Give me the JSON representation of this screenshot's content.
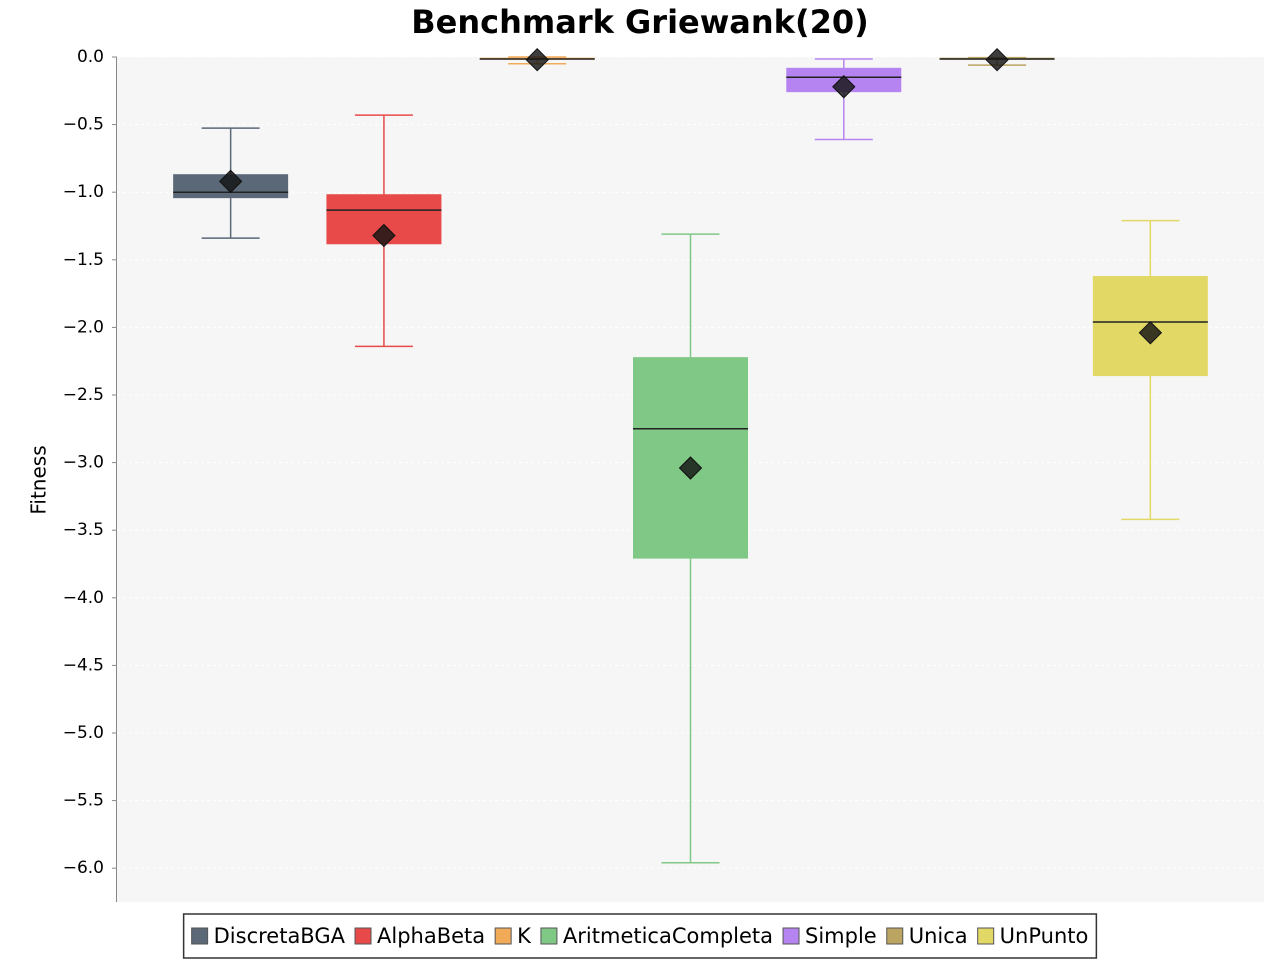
{
  "chart_data": {
    "type": "boxplot",
    "title": "Benchmark Griewank(20)",
    "y_label": "Fitness",
    "ylim": [
      -6.25,
      0
    ],
    "yticks": [
      {
        "value": 0,
        "label": "0.0"
      },
      {
        "value": -0.5,
        "label": "−0.5"
      },
      {
        "value": -1,
        "label": "−1.0"
      },
      {
        "value": -1.5,
        "label": "−1.5"
      },
      {
        "value": -2,
        "label": "−2.0"
      },
      {
        "value": -2.5,
        "label": "−2.5"
      },
      {
        "value": -3,
        "label": "−3.0"
      },
      {
        "value": -3.5,
        "label": "−3.5"
      },
      {
        "value": -4,
        "label": "−4.0"
      },
      {
        "value": -4.5,
        "label": "−4.5"
      },
      {
        "value": -5,
        "label": "−5.0"
      },
      {
        "value": -5.5,
        "label": "−5.5"
      },
      {
        "value": -6,
        "label": "−6.0"
      }
    ],
    "grid": true,
    "legend": "bottom",
    "series": [
      {
        "name": "DiscretaBGA",
        "color": "#5a6878",
        "whisker_low": -1.34,
        "q1": -1.044,
        "median": -1.0,
        "q3": -0.867,
        "whisker_high": -0.526,
        "mean": -0.92
      },
      {
        "name": "AlphaBeta",
        "color": "#e84a4a",
        "whisker_low": -2.14,
        "q1": -1.385,
        "median": -1.133,
        "q3": -1.015,
        "whisker_high": -0.43,
        "mean": -1.32
      },
      {
        "name": "K",
        "color": "#f0aa58",
        "whisker_low": -0.05,
        "q1": -0.02,
        "median": -0.015,
        "q3": -0.005,
        "whisker_high": 0,
        "mean": -0.02
      },
      {
        "name": "AritmeticaCompleta",
        "color": "#80c886",
        "whisker_low": -5.96,
        "q1": -3.71,
        "median": -2.75,
        "q3": -2.22,
        "whisker_high": -1.31,
        "mean": -3.04
      },
      {
        "name": "Simple",
        "color": "#b684f0",
        "whisker_low": -0.61,
        "q1": -0.26,
        "median": -0.15,
        "q3": -0.08,
        "whisker_high": -0.015,
        "mean": -0.22
      },
      {
        "name": "Unica",
        "color": "#bca462",
        "whisker_low": -0.06,
        "q1": -0.02,
        "median": -0.015,
        "q3": -0.005,
        "whisker_high": -0.005,
        "mean": -0.02
      },
      {
        "name": "UnPunto",
        "color": "#e2d866",
        "whisker_low": -3.42,
        "q1": -2.36,
        "median": -1.96,
        "q3": -1.62,
        "whisker_high": -1.21,
        "mean": -2.04
      }
    ]
  }
}
